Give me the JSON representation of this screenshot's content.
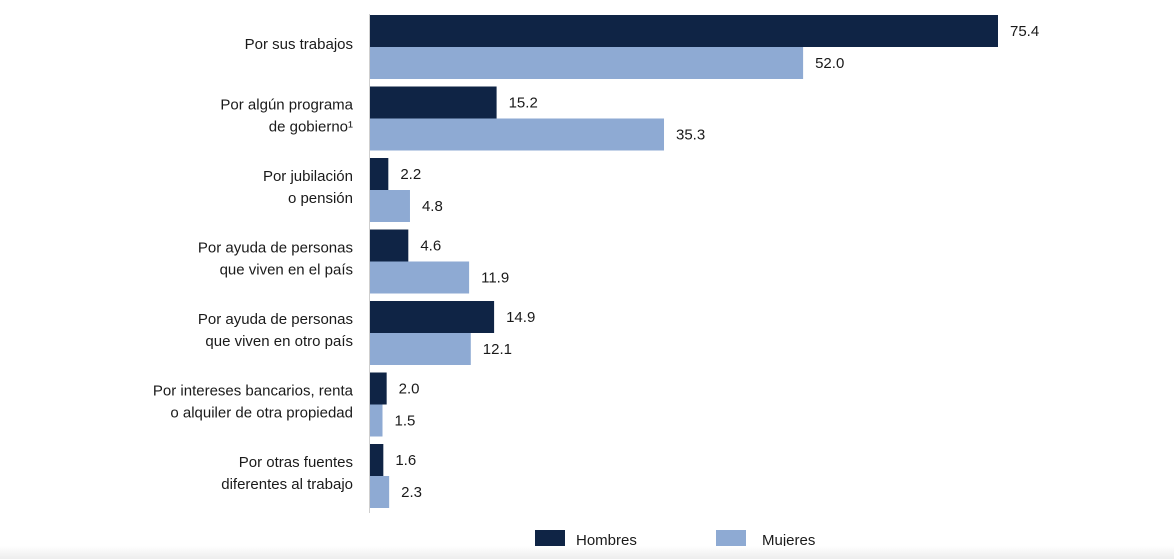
{
  "chart_data": {
    "type": "bar",
    "orientation": "horizontal",
    "categories": [
      [
        "Por sus trabajos"
      ],
      [
        "Por algún programa",
        "de gobierno¹"
      ],
      [
        "Por jubilación",
        "o pensión"
      ],
      [
        "Por ayuda de personas",
        "que viven en el país"
      ],
      [
        "Por ayuda de personas",
        "que viven en otro país"
      ],
      [
        "Por intereses bancarios, renta",
        "o alquiler de otra propiedad"
      ],
      [
        "Por otras fuentes",
        "diferentes al trabajo"
      ]
    ],
    "series": [
      {
        "name": "Hombres",
        "color": "#0f2445",
        "values": [
          75.4,
          15.2,
          2.2,
          4.6,
          14.9,
          2.0,
          1.6
        ],
        "labels": [
          "75.4",
          "15.2",
          "2.2",
          "4.6",
          "14.9",
          "2.0",
          "1.6"
        ]
      },
      {
        "name": "Mujeres",
        "color": "#8eaad3",
        "values": [
          52.0,
          35.3,
          4.8,
          11.9,
          12.1,
          1.5,
          2.3
        ],
        "labels": [
          "52.0",
          "35.3",
          "4.8",
          "11.9",
          "12.1",
          "1.5",
          "2.3"
        ]
      }
    ],
    "xlim": [
      0,
      75.4
    ],
    "grid": false,
    "legend_position": "bottom-center"
  }
}
